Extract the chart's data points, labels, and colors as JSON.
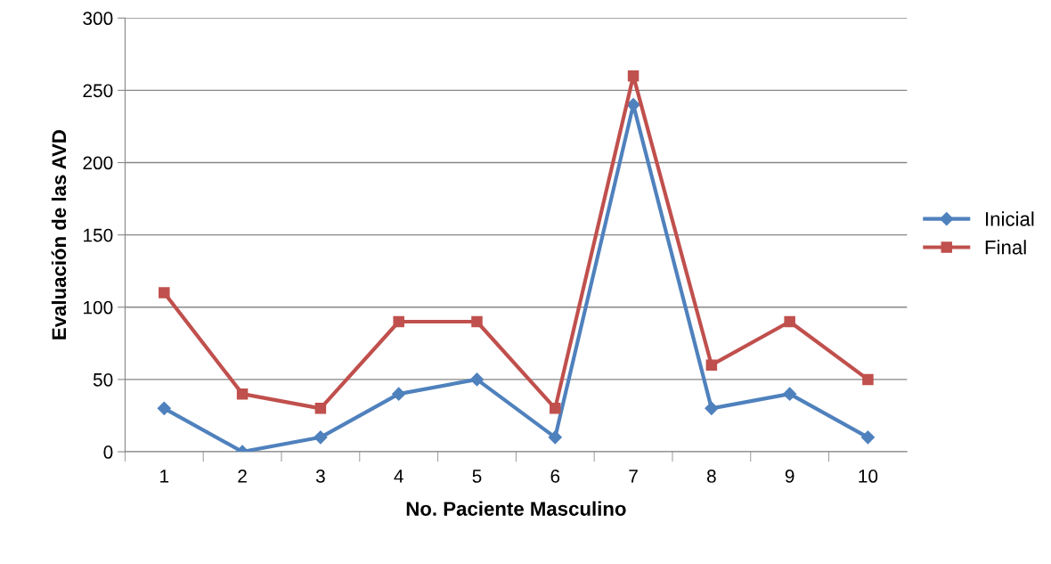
{
  "chart_data": {
    "type": "line",
    "xlabel": "No. Paciente Masculino",
    "ylabel": "Evaluación de las AVD",
    "categories": [
      "1",
      "2",
      "3",
      "4",
      "5",
      "6",
      "7",
      "8",
      "9",
      "10"
    ],
    "series": [
      {
        "name": "Inicial",
        "color": "#4f81bd",
        "marker": "diamond",
        "values": [
          30,
          0,
          10,
          40,
          50,
          10,
          240,
          30,
          40,
          10
        ]
      },
      {
        "name": "Final",
        "color": "#c0504d",
        "marker": "square",
        "values": [
          110,
          40,
          30,
          90,
          90,
          30,
          260,
          60,
          90,
          50
        ]
      }
    ],
    "ylim": [
      0,
      300
    ],
    "yticks": [
      0,
      50,
      100,
      150,
      200,
      250,
      300
    ],
    "grid": "y",
    "legend": "right",
    "line_style": "solid"
  }
}
